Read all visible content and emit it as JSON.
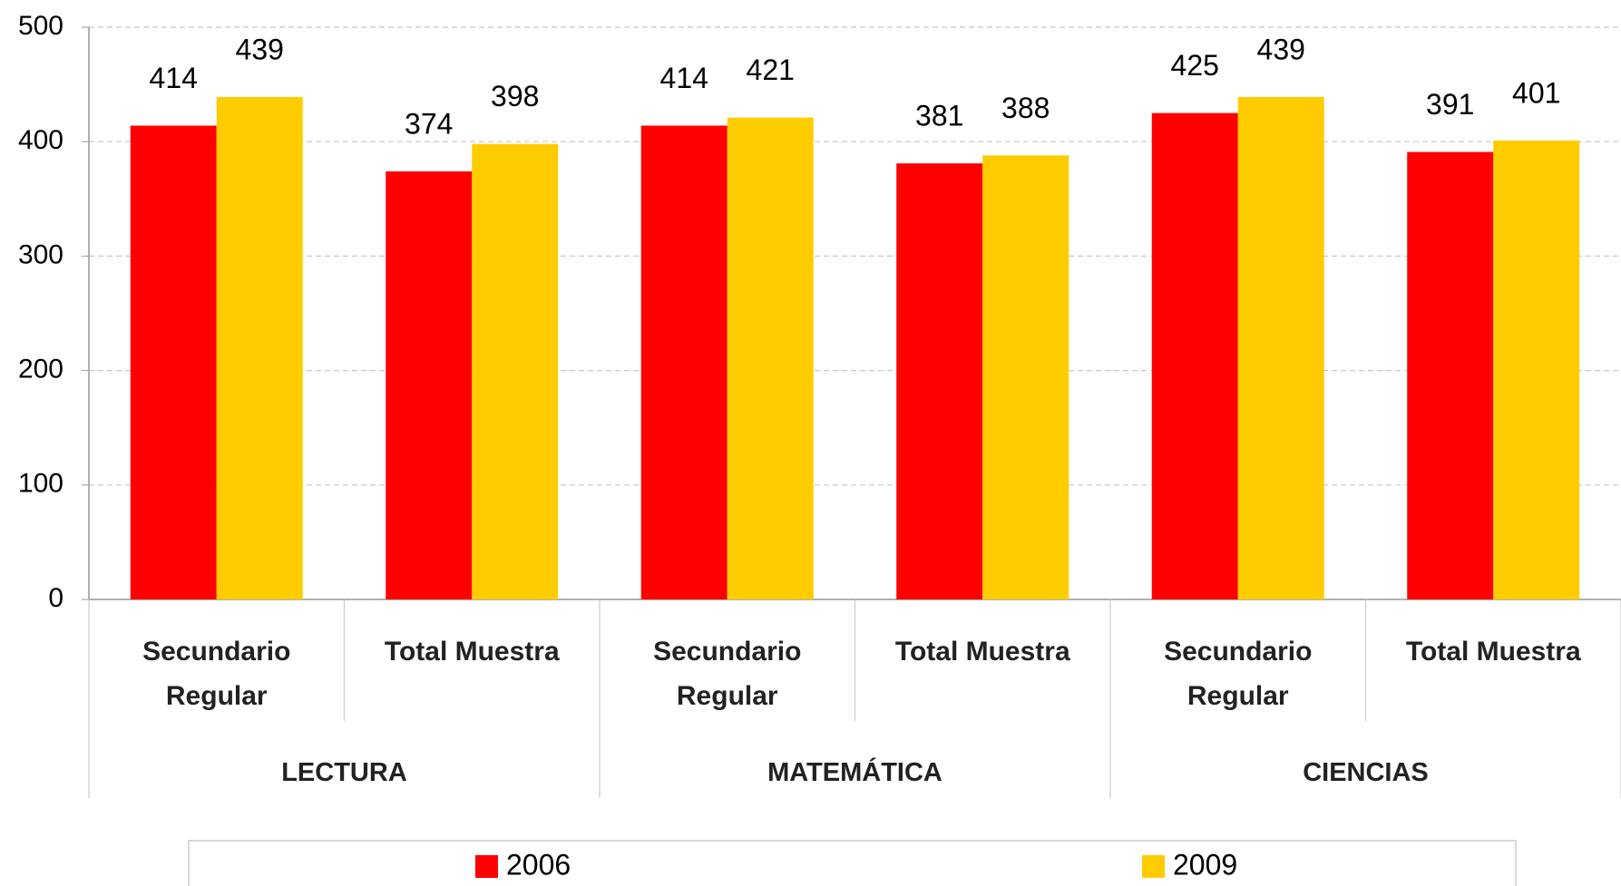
{
  "chart_data": {
    "type": "bar",
    "groups": [
      "LECTURA",
      "MATEMÁTICA",
      "CIENCIAS"
    ],
    "categories": [
      "Secundario Regular",
      "Total Muestra",
      "Secundario Regular",
      "Total Muestra",
      "Secundario Regular",
      "Total Muestra"
    ],
    "series": [
      {
        "name": "2006",
        "color": "#ff0000",
        "values": [
          414,
          374,
          414,
          381,
          425,
          391
        ]
      },
      {
        "name": "2009",
        "color": "#ffcc00",
        "values": [
          439,
          398,
          421,
          388,
          439,
          401
        ]
      }
    ],
    "ylim": [
      0,
      500
    ],
    "yticks": [
      0,
      100,
      200,
      300,
      400,
      500
    ],
    "grid": true,
    "legend": "bottom"
  }
}
